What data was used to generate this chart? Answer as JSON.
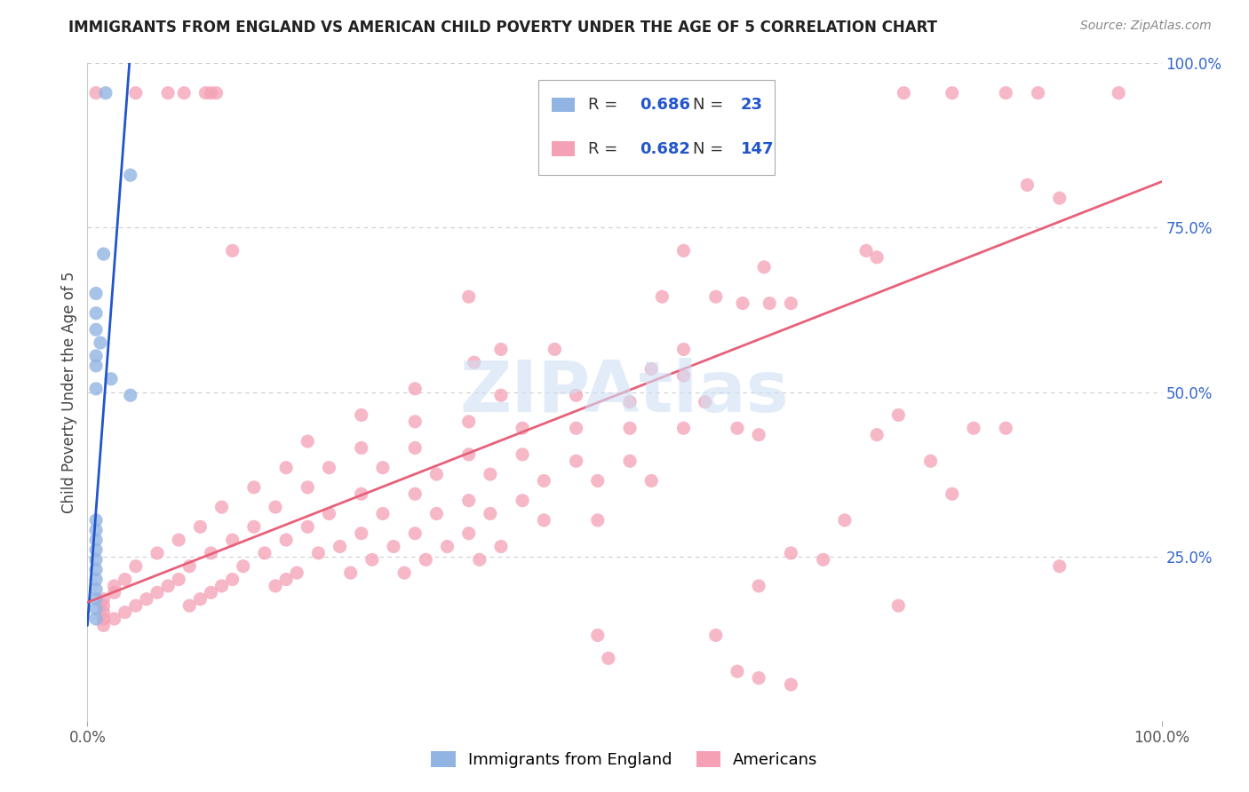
{
  "title": "IMMIGRANTS FROM ENGLAND VS AMERICAN CHILD POVERTY UNDER THE AGE OF 5 CORRELATION CHART",
  "source": "Source: ZipAtlas.com",
  "ylabel": "Child Poverty Under the Age of 5",
  "color_blue": "#92B4E3",
  "color_pink": "#F4A0B5",
  "color_trendline_blue": "#2255CC",
  "color_trendline_pink": "#E8607A",
  "watermark": "ZIPAtlas",
  "blue_points": [
    [
      0.017,
      0.955
    ],
    [
      0.04,
      0.83
    ],
    [
      0.015,
      0.71
    ],
    [
      0.008,
      0.65
    ],
    [
      0.008,
      0.62
    ],
    [
      0.008,
      0.595
    ],
    [
      0.012,
      0.575
    ],
    [
      0.008,
      0.555
    ],
    [
      0.008,
      0.54
    ],
    [
      0.022,
      0.52
    ],
    [
      0.008,
      0.505
    ],
    [
      0.04,
      0.495
    ],
    [
      0.008,
      0.305
    ],
    [
      0.008,
      0.29
    ],
    [
      0.008,
      0.275
    ],
    [
      0.008,
      0.26
    ],
    [
      0.008,
      0.245
    ],
    [
      0.008,
      0.23
    ],
    [
      0.008,
      0.215
    ],
    [
      0.008,
      0.2
    ],
    [
      0.008,
      0.185
    ],
    [
      0.008,
      0.17
    ],
    [
      0.008,
      0.155
    ]
  ],
  "pink_points": [
    [
      0.008,
      0.955
    ],
    [
      0.045,
      0.955
    ],
    [
      0.075,
      0.955
    ],
    [
      0.09,
      0.955
    ],
    [
      0.11,
      0.955
    ],
    [
      0.115,
      0.955
    ],
    [
      0.12,
      0.955
    ],
    [
      0.76,
      0.955
    ],
    [
      0.805,
      0.955
    ],
    [
      0.855,
      0.955
    ],
    [
      0.885,
      0.955
    ],
    [
      0.96,
      0.955
    ],
    [
      0.48,
      0.87
    ],
    [
      0.135,
      0.715
    ],
    [
      0.555,
      0.715
    ],
    [
      0.725,
      0.715
    ],
    [
      0.735,
      0.705
    ],
    [
      0.63,
      0.69
    ],
    [
      0.875,
      0.815
    ],
    [
      0.905,
      0.795
    ],
    [
      0.355,
      0.645
    ],
    [
      0.535,
      0.645
    ],
    [
      0.585,
      0.645
    ],
    [
      0.61,
      0.635
    ],
    [
      0.635,
      0.635
    ],
    [
      0.655,
      0.635
    ],
    [
      0.385,
      0.565
    ],
    [
      0.435,
      0.565
    ],
    [
      0.555,
      0.565
    ],
    [
      0.36,
      0.545
    ],
    [
      0.525,
      0.535
    ],
    [
      0.555,
      0.525
    ],
    [
      0.305,
      0.505
    ],
    [
      0.385,
      0.495
    ],
    [
      0.455,
      0.495
    ],
    [
      0.505,
      0.485
    ],
    [
      0.575,
      0.485
    ],
    [
      0.255,
      0.465
    ],
    [
      0.305,
      0.455
    ],
    [
      0.355,
      0.455
    ],
    [
      0.405,
      0.445
    ],
    [
      0.455,
      0.445
    ],
    [
      0.505,
      0.445
    ],
    [
      0.555,
      0.445
    ],
    [
      0.605,
      0.445
    ],
    [
      0.625,
      0.435
    ],
    [
      0.205,
      0.425
    ],
    [
      0.255,
      0.415
    ],
    [
      0.305,
      0.415
    ],
    [
      0.355,
      0.405
    ],
    [
      0.405,
      0.405
    ],
    [
      0.455,
      0.395
    ],
    [
      0.505,
      0.395
    ],
    [
      0.185,
      0.385
    ],
    [
      0.225,
      0.385
    ],
    [
      0.275,
      0.385
    ],
    [
      0.325,
      0.375
    ],
    [
      0.375,
      0.375
    ],
    [
      0.425,
      0.365
    ],
    [
      0.475,
      0.365
    ],
    [
      0.525,
      0.365
    ],
    [
      0.155,
      0.355
    ],
    [
      0.205,
      0.355
    ],
    [
      0.255,
      0.345
    ],
    [
      0.305,
      0.345
    ],
    [
      0.355,
      0.335
    ],
    [
      0.405,
      0.335
    ],
    [
      0.125,
      0.325
    ],
    [
      0.175,
      0.325
    ],
    [
      0.225,
      0.315
    ],
    [
      0.275,
      0.315
    ],
    [
      0.325,
      0.315
    ],
    [
      0.375,
      0.315
    ],
    [
      0.425,
      0.305
    ],
    [
      0.475,
      0.305
    ],
    [
      0.105,
      0.295
    ],
    [
      0.155,
      0.295
    ],
    [
      0.205,
      0.295
    ],
    [
      0.255,
      0.285
    ],
    [
      0.305,
      0.285
    ],
    [
      0.355,
      0.285
    ],
    [
      0.085,
      0.275
    ],
    [
      0.135,
      0.275
    ],
    [
      0.185,
      0.275
    ],
    [
      0.235,
      0.265
    ],
    [
      0.285,
      0.265
    ],
    [
      0.335,
      0.265
    ],
    [
      0.385,
      0.265
    ],
    [
      0.065,
      0.255
    ],
    [
      0.115,
      0.255
    ],
    [
      0.165,
      0.255
    ],
    [
      0.215,
      0.255
    ],
    [
      0.265,
      0.245
    ],
    [
      0.315,
      0.245
    ],
    [
      0.365,
      0.245
    ],
    [
      0.045,
      0.235
    ],
    [
      0.095,
      0.235
    ],
    [
      0.145,
      0.235
    ],
    [
      0.195,
      0.225
    ],
    [
      0.245,
      0.225
    ],
    [
      0.295,
      0.225
    ],
    [
      0.035,
      0.215
    ],
    [
      0.085,
      0.215
    ],
    [
      0.135,
      0.215
    ],
    [
      0.185,
      0.215
    ],
    [
      0.025,
      0.205
    ],
    [
      0.075,
      0.205
    ],
    [
      0.125,
      0.205
    ],
    [
      0.175,
      0.205
    ],
    [
      0.025,
      0.195
    ],
    [
      0.065,
      0.195
    ],
    [
      0.115,
      0.195
    ],
    [
      0.015,
      0.185
    ],
    [
      0.055,
      0.185
    ],
    [
      0.105,
      0.185
    ],
    [
      0.015,
      0.175
    ],
    [
      0.045,
      0.175
    ],
    [
      0.095,
      0.175
    ],
    [
      0.015,
      0.165
    ],
    [
      0.035,
      0.165
    ],
    [
      0.015,
      0.155
    ],
    [
      0.025,
      0.155
    ],
    [
      0.015,
      0.145
    ],
    [
      0.475,
      0.13
    ],
    [
      0.585,
      0.13
    ],
    [
      0.625,
      0.205
    ],
    [
      0.655,
      0.255
    ],
    [
      0.685,
      0.245
    ],
    [
      0.705,
      0.305
    ],
    [
      0.735,
      0.435
    ],
    [
      0.755,
      0.465
    ],
    [
      0.785,
      0.395
    ],
    [
      0.805,
      0.345
    ],
    [
      0.825,
      0.445
    ],
    [
      0.855,
      0.445
    ],
    [
      0.485,
      0.095
    ],
    [
      0.605,
      0.075
    ],
    [
      0.625,
      0.065
    ],
    [
      0.655,
      0.055
    ],
    [
      0.755,
      0.175
    ],
    [
      0.905,
      0.235
    ]
  ],
  "blue_trendline": [
    [
      0.0,
      0.145
    ],
    [
      0.04,
      1.02
    ]
  ],
  "pink_trendline": [
    [
      0.0,
      0.18
    ],
    [
      1.0,
      0.82
    ]
  ]
}
